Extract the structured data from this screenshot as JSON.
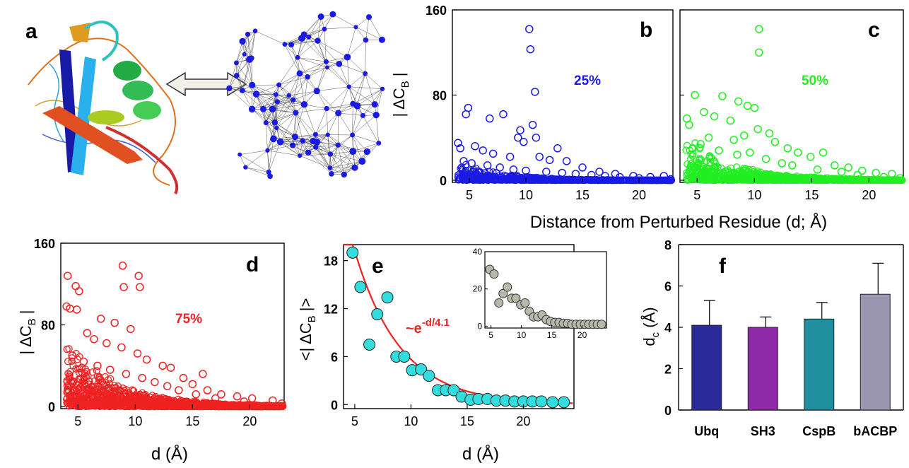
{
  "figure": {
    "panel_letters": [
      "a",
      "b",
      "c",
      "d",
      "e",
      "f"
    ],
    "shared_xlabel": "Distance from Perturbed Residue (d; Å)"
  },
  "chart_data": [
    {
      "panel": "b",
      "type": "scatter",
      "marker": "open-circle",
      "color": "#1a1ae6",
      "ylabel": "|ΔC_B|",
      "xlabel": "",
      "annotation": "25%",
      "xlim": [
        3.5,
        23
      ],
      "ylim": [
        -2,
        160
      ],
      "xticks": [
        5,
        10,
        15,
        20
      ],
      "yticks": [
        0,
        80,
        160
      ],
      "points": [
        [
          10.3,
          142
        ],
        [
          10.4,
          123
        ],
        [
          10.8,
          83
        ],
        [
          4.9,
          68
        ],
        [
          4.7,
          62
        ],
        [
          6.8,
          58
        ],
        [
          8.0,
          62
        ],
        [
          9.5,
          47
        ],
        [
          10.6,
          52
        ],
        [
          9.3,
          40
        ],
        [
          10.9,
          40
        ],
        [
          4.0,
          35
        ],
        [
          4.2,
          30
        ],
        [
          5.5,
          32
        ],
        [
          6.2,
          28
        ],
        [
          7.1,
          25
        ],
        [
          8.6,
          22
        ],
        [
          9.8,
          36
        ],
        [
          11.2,
          22
        ],
        [
          12.1,
          19
        ],
        [
          12.8,
          30
        ],
        [
          13.6,
          18
        ],
        [
          15.0,
          12
        ],
        [
          16.5,
          8
        ],
        [
          17.9,
          6
        ],
        [
          19.5,
          4
        ],
        [
          21.0,
          3
        ],
        [
          22.2,
          4
        ],
        [
          4.5,
          18
        ],
        [
          5.2,
          16
        ],
        [
          6.6,
          14
        ],
        [
          7.7,
          12
        ],
        [
          8.9,
          10
        ],
        [
          10.0,
          9
        ],
        [
          11.8,
          8
        ],
        [
          13.2,
          7
        ],
        [
          14.4,
          6
        ],
        [
          15.8,
          5
        ],
        [
          17.0,
          4
        ],
        [
          18.3,
          3
        ],
        [
          20.0,
          2
        ],
        [
          22.8,
          1
        ]
      ]
    },
    {
      "panel": "c",
      "type": "scatter",
      "marker": "open-circle",
      "color": "#22ee22",
      "ylabel": "",
      "xlabel": "",
      "annotation": "50%",
      "xlim": [
        3.5,
        23
      ],
      "ylim": [
        -2,
        160
      ],
      "xticks": [
        5,
        10,
        15,
        20
      ],
      "yticks": [
        0,
        80,
        160
      ],
      "points": [
        [
          10.4,
          142
        ],
        [
          10.4,
          120
        ],
        [
          4.8,
          80
        ],
        [
          7.2,
          79
        ],
        [
          8.6,
          74
        ],
        [
          9.4,
          70
        ],
        [
          10.0,
          68
        ],
        [
          4.1,
          58
        ],
        [
          4.3,
          52
        ],
        [
          5.6,
          64
        ],
        [
          6.5,
          60
        ],
        [
          7.9,
          56
        ],
        [
          10.3,
          48
        ],
        [
          11.3,
          44
        ],
        [
          6.0,
          40
        ],
        [
          8.2,
          38
        ],
        [
          9.1,
          42
        ],
        [
          11.8,
          36
        ],
        [
          12.9,
          30
        ],
        [
          13.8,
          26
        ],
        [
          14.9,
          22
        ],
        [
          16.0,
          26
        ],
        [
          17.0,
          14
        ],
        [
          18.2,
          12
        ],
        [
          19.4,
          9
        ],
        [
          20.6,
          7
        ],
        [
          22.0,
          6
        ],
        [
          4.6,
          30
        ],
        [
          5.3,
          34
        ],
        [
          6.9,
          28
        ],
        [
          8.5,
          24
        ],
        [
          9.6,
          26
        ],
        [
          11.0,
          20
        ],
        [
          12.4,
          16
        ],
        [
          13.3,
          14
        ],
        [
          15.5,
          10
        ],
        [
          17.6,
          8
        ],
        [
          19.0,
          5
        ],
        [
          21.3,
          3
        ],
        [
          22.7,
          2
        ]
      ]
    },
    {
      "panel": "d",
      "type": "scatter",
      "marker": "open-circle",
      "color": "#ee2222",
      "ylabel": "|ΔC_B|",
      "xlabel": "d (Å)",
      "annotation": "75%",
      "xlim": [
        3.5,
        23
      ],
      "ylim": [
        -2,
        160
      ],
      "xticks": [
        5,
        10,
        15,
        20
      ],
      "yticks": [
        0,
        80,
        160
      ],
      "points": [
        [
          8.9,
          138
        ],
        [
          10.3,
          128
        ],
        [
          4.1,
          128
        ],
        [
          10.4,
          117
        ],
        [
          9.0,
          117
        ],
        [
          4.8,
          118
        ],
        [
          5.1,
          113
        ],
        [
          4.0,
          98
        ],
        [
          4.3,
          96
        ],
        [
          4.9,
          95
        ],
        [
          7.0,
          86
        ],
        [
          8.2,
          82
        ],
        [
          9.6,
          76
        ],
        [
          5.8,
          72
        ],
        [
          6.4,
          66
        ],
        [
          7.5,
          62
        ],
        [
          8.8,
          58
        ],
        [
          10.2,
          52
        ],
        [
          11.0,
          46
        ],
        [
          12.4,
          40
        ],
        [
          13.1,
          38
        ],
        [
          15.9,
          32
        ],
        [
          14.2,
          28
        ],
        [
          15.0,
          22
        ],
        [
          16.3,
          16
        ],
        [
          17.5,
          12
        ],
        [
          18.9,
          10
        ],
        [
          20.2,
          8
        ],
        [
          22.0,
          6
        ],
        [
          22.8,
          3
        ],
        [
          4.5,
          50
        ],
        [
          5.5,
          44
        ],
        [
          6.7,
          40
        ],
        [
          7.8,
          36
        ],
        [
          9.2,
          32
        ],
        [
          10.6,
          28
        ],
        [
          11.7,
          24
        ],
        [
          12.8,
          20
        ],
        [
          13.8,
          16
        ],
        [
          15.3,
          12
        ],
        [
          17.0,
          8
        ],
        [
          19.5,
          5
        ]
      ]
    },
    {
      "panel": "e",
      "type": "scatter",
      "marker": "filled-circle",
      "color": "#33dddd",
      "fit_color": "#ee2222",
      "fit_label": "~e",
      "fit_label_sup": "-d/4.1",
      "fit_decay_length": 4.1,
      "ylabel": "<|ΔC_B|>",
      "xlabel": "d (Å)",
      "xlim": [
        4,
        24.5
      ],
      "ylim": [
        -0.5,
        20
      ],
      "xticks": [
        5,
        10,
        15,
        20
      ],
      "yticks": [
        0,
        6,
        12,
        18
      ],
      "points": [
        [
          4.8,
          19.0
        ],
        [
          5.5,
          14.7
        ],
        [
          6.3,
          7.5
        ],
        [
          7.0,
          11.3
        ],
        [
          7.9,
          13.4
        ],
        [
          8.7,
          6.0
        ],
        [
          9.4,
          6.0
        ],
        [
          10.1,
          4.3
        ],
        [
          10.9,
          4.4
        ],
        [
          11.6,
          3.6
        ],
        [
          12.4,
          1.8
        ],
        [
          13.1,
          1.8
        ],
        [
          13.8,
          1.8
        ],
        [
          14.5,
          1.0
        ],
        [
          15.3,
          0.6
        ],
        [
          16.0,
          0.7
        ],
        [
          16.8,
          0.7
        ],
        [
          17.6,
          0.5
        ],
        [
          18.4,
          0.5
        ],
        [
          19.2,
          0.4
        ],
        [
          20.0,
          0.4
        ],
        [
          20.8,
          0.4
        ],
        [
          21.6,
          0.4
        ],
        [
          22.6,
          0.3
        ],
        [
          23.6,
          0.3
        ]
      ],
      "inset": {
        "type": "scatter",
        "marker": "filled-circle",
        "color": "#b8b8aa",
        "xlim": [
          4,
          24
        ],
        "ylim": [
          -1,
          40
        ],
        "xticks": [
          5,
          10,
          15,
          20
        ],
        "yticks": [
          0,
          20,
          40
        ],
        "points": [
          [
            4.8,
            30.5
          ],
          [
            5.5,
            28.0
          ],
          [
            6.3,
            12.5
          ],
          [
            7.0,
            17.5
          ],
          [
            7.7,
            21.0
          ],
          [
            8.4,
            15.0
          ],
          [
            9.1,
            15.0
          ],
          [
            9.9,
            11.5
          ],
          [
            10.6,
            12.5
          ],
          [
            11.3,
            8.0
          ],
          [
            12.0,
            5.0
          ],
          [
            12.7,
            5.0
          ],
          [
            13.4,
            6.0
          ],
          [
            14.1,
            3.5
          ],
          [
            14.8,
            2.5
          ],
          [
            15.5,
            2.0
          ],
          [
            16.2,
            2.0
          ],
          [
            16.9,
            1.5
          ],
          [
            17.6,
            1.5
          ],
          [
            18.3,
            1.0
          ],
          [
            19.0,
            1.0
          ],
          [
            19.7,
            1.0
          ],
          [
            20.4,
            1.0
          ],
          [
            21.1,
            1.0
          ],
          [
            21.8,
            1.0
          ],
          [
            22.5,
            1.0
          ],
          [
            23.2,
            1.0
          ]
        ]
      }
    },
    {
      "panel": "f",
      "type": "bar",
      "ylabel": "d_c (Å)",
      "xlabel": "",
      "ylim": [
        0,
        8
      ],
      "yticks": [
        0,
        2,
        4,
        6,
        8
      ],
      "categories": [
        "Ubq",
        "SH3",
        "CspB",
        "bACBP"
      ],
      "values": [
        4.1,
        4.0,
        4.4,
        5.6
      ],
      "errors": [
        1.2,
        0.5,
        0.8,
        1.5
      ],
      "colors": [
        "#2a2a9a",
        "#8e2aa8",
        "#1f8fa0",
        "#9a96b0"
      ]
    }
  ]
}
